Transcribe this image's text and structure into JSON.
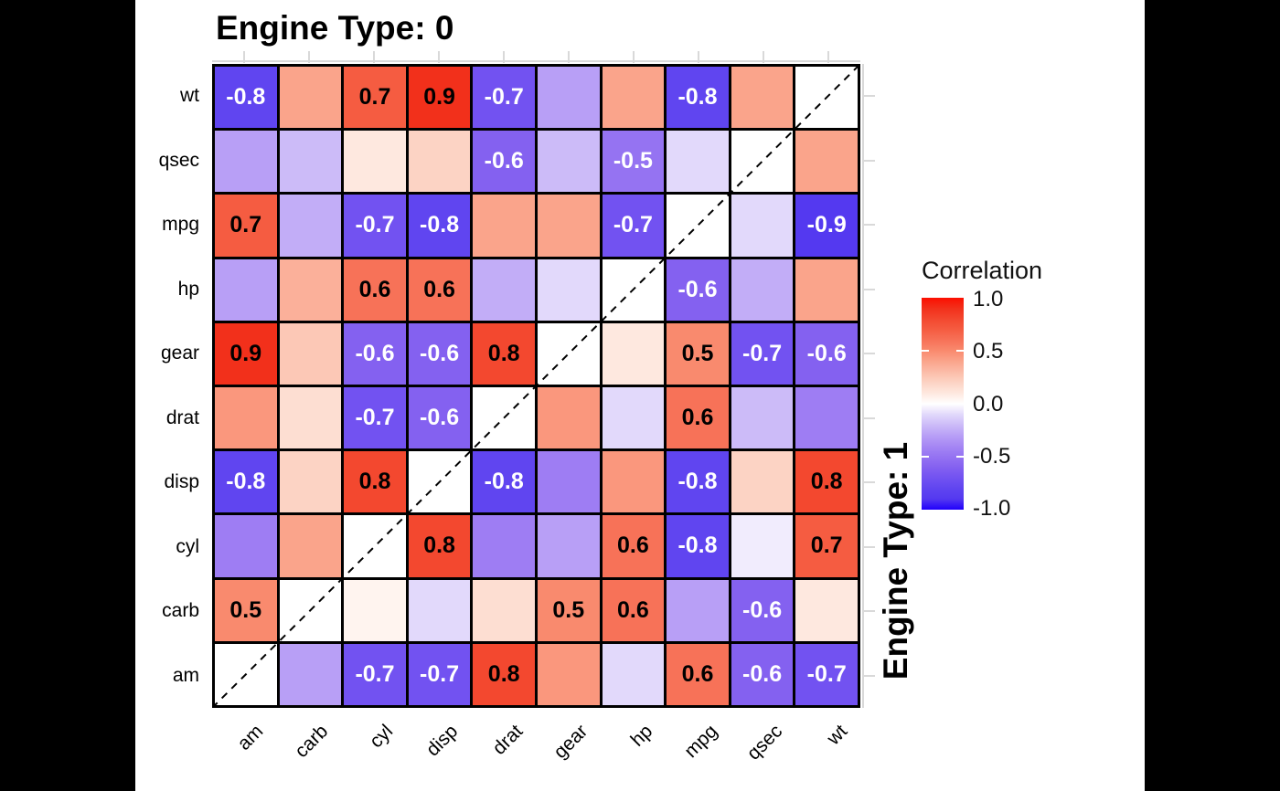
{
  "window": {
    "side_bar_color": "#000000",
    "panel_color": "#ffffff"
  },
  "chart_data": {
    "type": "heatmap",
    "title": "Engine Type: 0",
    "right_strip_title": "Engine Type: 1",
    "x_categories": [
      "am",
      "carb",
      "cyl",
      "disp",
      "drat",
      "gear",
      "hp",
      "mpg",
      "qsec",
      "wt"
    ],
    "y_categories_top_to_bottom": [
      "wt",
      "qsec",
      "mpg",
      "hp",
      "gear",
      "drat",
      "disp",
      "cyl",
      "carb",
      "am"
    ],
    "diagonal": {
      "style": "dashed-black-line",
      "cell_fill": "#ffffff"
    },
    "rows": [
      {
        "name": "wt",
        "values": [
          -0.8,
          0.4,
          0.7,
          0.9,
          -0.7,
          -0.3,
          0.4,
          -0.8,
          0.4,
          null
        ],
        "labels": [
          "-0.8",
          "",
          "0.7",
          "0.9",
          "-0.7",
          "",
          "",
          "-0.8",
          "",
          ""
        ]
      },
      {
        "name": "qsec",
        "values": [
          -0.3,
          -0.2,
          0.1,
          0.2,
          -0.6,
          -0.2,
          -0.5,
          -0.1,
          null,
          0.4
        ],
        "labels": [
          "",
          "",
          "",
          "",
          "-0.6",
          "",
          "-0.5",
          "",
          "",
          ""
        ]
      },
      {
        "name": "mpg",
        "values": [
          0.7,
          -0.25,
          -0.7,
          -0.8,
          0.4,
          0.4,
          -0.7,
          null,
          -0.1,
          -0.9
        ],
        "labels": [
          "0.7",
          "",
          "-0.7",
          "-0.8",
          "",
          "",
          "-0.7",
          "",
          "",
          "-0.9"
        ]
      },
      {
        "name": "hp",
        "values": [
          -0.3,
          0.35,
          0.6,
          0.6,
          -0.25,
          -0.1,
          null,
          -0.6,
          -0.25,
          0.4
        ],
        "labels": [
          "",
          "",
          "0.6",
          "0.6",
          "",
          "",
          "",
          "-0.6",
          "",
          ""
        ]
      },
      {
        "name": "gear",
        "values": [
          0.9,
          0.25,
          -0.6,
          -0.6,
          0.8,
          null,
          0.1,
          0.5,
          -0.7,
          -0.6
        ],
        "labels": [
          "0.9",
          "",
          "-0.6",
          "-0.6",
          "0.8",
          "",
          "",
          "0.5",
          "-0.7",
          "-0.6"
        ]
      },
      {
        "name": "drat",
        "values": [
          0.45,
          0.15,
          -0.7,
          -0.6,
          null,
          0.45,
          -0.1,
          0.6,
          -0.2,
          -0.45
        ],
        "labels": [
          "",
          "",
          "-0.7",
          "-0.6",
          "",
          "",
          "",
          "0.6",
          "",
          ""
        ]
      },
      {
        "name": "disp",
        "values": [
          -0.8,
          0.2,
          0.8,
          null,
          -0.8,
          -0.45,
          0.45,
          -0.8,
          0.2,
          0.8
        ],
        "labels": [
          "-0.8",
          "",
          "0.8",
          "",
          "-0.8",
          "",
          "",
          "-0.8",
          "",
          "0.8"
        ]
      },
      {
        "name": "cyl",
        "values": [
          -0.45,
          0.4,
          null,
          0.8,
          -0.45,
          -0.3,
          0.6,
          -0.8,
          -0.05,
          0.7
        ],
        "labels": [
          "",
          "",
          "",
          "0.8",
          "",
          "",
          "0.6",
          "-0.8",
          "",
          "0.7"
        ]
      },
      {
        "name": "carb",
        "values": [
          0.5,
          null,
          0.05,
          -0.1,
          0.15,
          0.5,
          0.6,
          -0.3,
          -0.6,
          0.1
        ],
        "labels": [
          "0.5",
          "",
          "",
          "",
          "",
          "0.5",
          "0.6",
          "",
          "-0.6",
          ""
        ]
      },
      {
        "name": "am",
        "values": [
          null,
          -0.3,
          -0.7,
          -0.7,
          0.8,
          0.45,
          -0.1,
          0.6,
          -0.6,
          -0.7
        ],
        "labels": [
          "",
          "",
          "-0.7",
          "-0.7",
          "0.8",
          "",
          "",
          "0.6",
          "-0.6",
          "-0.7"
        ]
      }
    ],
    "legend": {
      "title": "Correlation",
      "tick_labels": [
        "1.0",
        "0.5",
        "0.0",
        "-0.5",
        "-1.0"
      ]
    },
    "value_range": [
      -1,
      1
    ],
    "label_text_color_positive": "#000000",
    "label_text_color_negative": "#ffffff",
    "color_scale": [
      [
        -1.0,
        "#2000FB"
      ],
      [
        -0.9,
        "#5439F0"
      ],
      [
        -0.8,
        "#6045F0"
      ],
      [
        -0.7,
        "#7252F1"
      ],
      [
        -0.6,
        "#8461F0"
      ],
      [
        -0.5,
        "#9573F2"
      ],
      [
        -0.4,
        "#A687F4"
      ],
      [
        -0.3,
        "#B89FF6"
      ],
      [
        -0.2,
        "#CCBBF8"
      ],
      [
        -0.1,
        "#E2D9FB"
      ],
      [
        0.0,
        "#FFFFFF"
      ],
      [
        0.1,
        "#FEE8DF"
      ],
      [
        0.2,
        "#FCD3C4"
      ],
      [
        0.3,
        "#FBBCA8"
      ],
      [
        0.4,
        "#FAA48B"
      ],
      [
        0.5,
        "#F98A6E"
      ],
      [
        0.6,
        "#F77258"
      ],
      [
        0.7,
        "#F55C41"
      ],
      [
        0.8,
        "#F3482F"
      ],
      [
        0.9,
        "#F2301B"
      ],
      [
        1.0,
        "#FB0F00"
      ]
    ]
  }
}
